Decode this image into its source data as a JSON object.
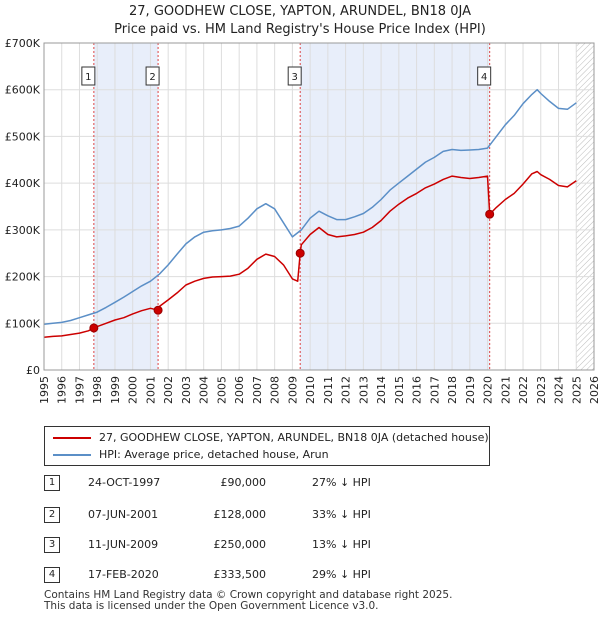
{
  "header": {
    "title": "27, GOODHEW CLOSE, YAPTON, ARUNDEL, BN18 0JA",
    "subtitle": "Price paid vs. HM Land Registry's House Price Index (HPI)"
  },
  "chart_data": {
    "type": "line",
    "title": "27, GOODHEW CLOSE, YAPTON, ARUNDEL, BN18 0JA",
    "subtitle": "Price paid vs. HM Land Registry's House Price Index (HPI)",
    "xlim": [
      1995,
      2026
    ],
    "ylim": [
      0,
      700000
    ],
    "x_ticks": [
      1995,
      1996,
      1997,
      1998,
      1999,
      2000,
      2001,
      2002,
      2003,
      2004,
      2005,
      2006,
      2007,
      2008,
      2009,
      2010,
      2011,
      2012,
      2013,
      2014,
      2015,
      2016,
      2017,
      2018,
      2019,
      2020,
      2021,
      2022,
      2023,
      2024,
      2025,
      2026
    ],
    "x_tick_labels": [
      "1995",
      "1996",
      "1997",
      "1998",
      "1999",
      "2000",
      "2001",
      "2002",
      "2003",
      "2004",
      "2005",
      "2006",
      "2007",
      "2008",
      "2009",
      "2010",
      "2011",
      "2012",
      "2013",
      "2014",
      "2015",
      "2016",
      "2017",
      "2018",
      "2019",
      "2020",
      "2021",
      "2022",
      "2023",
      "2024",
      "2025",
      "2026"
    ],
    "y_ticks": [
      0,
      100000,
      200000,
      300000,
      400000,
      500000,
      600000,
      700000
    ],
    "y_tick_labels": [
      "£0",
      "£100K",
      "£200K",
      "£300K",
      "£400K",
      "£500K",
      "£600K",
      "£700K"
    ],
    "series": [
      {
        "name": "27, GOODHEW CLOSE, YAPTON, ARUNDEL, BN18 0JA (detached house)",
        "color": "#cc0000",
        "x": [
          1995.0,
          1995.5,
          1996.0,
          1996.5,
          1997.0,
          1997.5,
          1997.81,
          1998.0,
          1998.5,
          1999.0,
          1999.5,
          2000.0,
          2000.5,
          2001.0,
          2001.43,
          2001.5,
          2002.0,
          2002.5,
          2003.0,
          2003.5,
          2004.0,
          2004.5,
          2005.0,
          2005.5,
          2006.0,
          2006.5,
          2007.0,
          2007.5,
          2008.0,
          2008.5,
          2009.0,
          2009.3,
          2009.44,
          2009.5,
          2010.0,
          2010.5,
          2011.0,
          2011.5,
          2012.0,
          2012.5,
          2013.0,
          2013.5,
          2014.0,
          2014.5,
          2015.0,
          2015.5,
          2016.0,
          2016.5,
          2017.0,
          2017.5,
          2018.0,
          2018.5,
          2019.0,
          2019.5,
          2020.0,
          2020.12,
          2020.5,
          2021.0,
          2021.5,
          2022.0,
          2022.5,
          2022.8,
          2023.0,
          2023.5,
          2024.0,
          2024.5,
          2025.0
        ],
        "values": [
          70000,
          72000,
          73000,
          76000,
          79000,
          84000,
          90000,
          93000,
          100000,
          107000,
          112000,
          120000,
          127000,
          132000,
          128000,
          136000,
          150000,
          165000,
          182000,
          190000,
          196000,
          199000,
          200000,
          201000,
          205000,
          218000,
          237000,
          248000,
          243000,
          225000,
          195000,
          190000,
          250000,
          268000,
          290000,
          305000,
          290000,
          285000,
          287000,
          290000,
          295000,
          305000,
          320000,
          340000,
          355000,
          368000,
          378000,
          390000,
          398000,
          408000,
          415000,
          412000,
          410000,
          412000,
          415000,
          333500,
          348000,
          365000,
          378000,
          398000,
          420000,
          425000,
          418000,
          408000,
          395000,
          392000,
          405000
        ]
      },
      {
        "name": "HPI: Average price, detached house, Arun",
        "color": "#5b8fc7",
        "x": [
          1995.0,
          1995.5,
          1996.0,
          1996.5,
          1997.0,
          1997.5,
          1998.0,
          1998.5,
          1999.0,
          1999.5,
          2000.0,
          2000.5,
          2001.0,
          2001.5,
          2002.0,
          2002.5,
          2003.0,
          2003.5,
          2004.0,
          2004.5,
          2005.0,
          2005.5,
          2006.0,
          2006.5,
          2007.0,
          2007.5,
          2008.0,
          2008.5,
          2009.0,
          2009.5,
          2010.0,
          2010.5,
          2011.0,
          2011.5,
          2012.0,
          2012.5,
          2013.0,
          2013.5,
          2014.0,
          2014.5,
          2015.0,
          2015.5,
          2016.0,
          2016.5,
          2017.0,
          2017.5,
          2018.0,
          2018.5,
          2019.0,
          2019.5,
          2020.0,
          2020.5,
          2021.0,
          2021.5,
          2022.0,
          2022.5,
          2022.8,
          2023.0,
          2023.5,
          2024.0,
          2024.5,
          2025.0
        ],
        "values": [
          98000,
          100000,
          102000,
          106000,
          112000,
          118000,
          124000,
          134000,
          145000,
          156000,
          168000,
          180000,
          190000,
          205000,
          225000,
          248000,
          270000,
          285000,
          295000,
          298000,
          300000,
          303000,
          308000,
          325000,
          345000,
          356000,
          345000,
          315000,
          285000,
          300000,
          325000,
          340000,
          330000,
          322000,
          322000,
          328000,
          335000,
          348000,
          365000,
          385000,
          400000,
          415000,
          430000,
          445000,
          455000,
          468000,
          472000,
          470000,
          471000,
          472000,
          475000,
          500000,
          525000,
          545000,
          570000,
          590000,
          600000,
          592000,
          575000,
          560000,
          558000,
          572000
        ]
      }
    ],
    "transactions": [
      {
        "n": "1",
        "x": 1997.81,
        "price": 90000,
        "date": "24-OCT-1997",
        "price_label": "£90,000",
        "hpi": "27% ↓ HPI"
      },
      {
        "n": "2",
        "x": 2001.43,
        "price": 128000,
        "date": "07-JUN-2001",
        "price_label": "£128,000",
        "hpi": "33% ↓ HPI"
      },
      {
        "n": "3",
        "x": 2009.44,
        "price": 250000,
        "date": "11-JUN-2009",
        "price_label": "£250,000",
        "hpi": "13% ↓ HPI"
      },
      {
        "n": "4",
        "x": 2020.12,
        "price": 333500,
        "date": "17-FEB-2020",
        "price_label": "£333,500",
        "hpi": "29% ↓ HPI"
      }
    ],
    "shaded_ranges": [
      [
        1997.81,
        2001.43
      ],
      [
        2009.44,
        2020.12
      ]
    ],
    "forecast_start": 2025.0,
    "grid": true
  },
  "legend": {
    "red_label": "27, GOODHEW CLOSE, YAPTON, ARUNDEL, BN18 0JA (detached house)",
    "blue_label": "HPI: Average price, detached house, Arun"
  },
  "footer": {
    "line1": "Contains HM Land Registry data © Crown copyright and database right 2025.",
    "line2": "This data is licensed under the Open Government Licence v3.0."
  }
}
